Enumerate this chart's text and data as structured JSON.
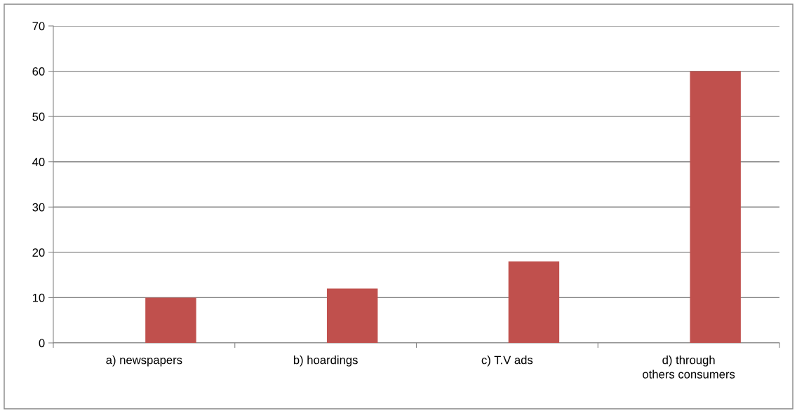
{
  "chart_data": {
    "type": "bar",
    "categories": [
      "a) newspapers",
      "b) hoardings",
      "c) T.V ads",
      "d) through others consumers"
    ],
    "values": [
      10,
      12,
      18,
      60
    ],
    "color": "#c0504d",
    "ylim": [
      0,
      70
    ],
    "yticks": [
      0,
      10,
      20,
      30,
      40,
      50,
      60,
      70
    ],
    "grid": "y",
    "legend": false
  }
}
